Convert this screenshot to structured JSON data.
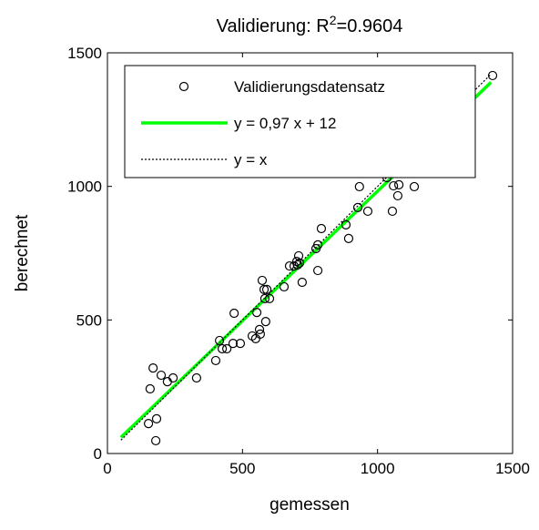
{
  "chart_data": {
    "type": "scatter",
    "title_parts": [
      "Validierung: R",
      "2",
      "=0.9604"
    ],
    "xlabel": "gemessen",
    "ylabel": "berechnet",
    "xlim": [
      0,
      1500
    ],
    "ylim": [
      0,
      1500
    ],
    "xticks": [
      0,
      500,
      1000,
      1500
    ],
    "yticks": [
      0,
      500,
      1000,
      1500
    ],
    "legend": "top-left",
    "series": [
      {
        "name": "Validierungsdatensatz",
        "color": "#000000",
        "marker": "circle",
        "x": [
          152,
          182,
          158,
          169,
          199,
          179,
          222,
          243,
          330,
          401,
          415,
          425,
          442,
          465,
          469,
          492,
          536,
          549,
          553,
          563,
          566,
          573,
          580,
          590,
          583,
          586,
          600,
          654,
          674,
          691,
          704,
          708,
          701,
          711,
          721,
          772,
          779,
          779,
          792,
          883,
          893,
          927,
          933,
          964,
          1059,
          1075,
          1079,
          1055,
          1136,
          1035,
          1426
        ],
        "values": [
          112,
          130,
          242,
          320,
          293,
          48,
          269,
          283,
          283,
          348,
          423,
          392,
          392,
          412,
          525,
          412,
          440,
          430,
          528,
          464,
          447,
          648,
          614,
          614,
          580,
          494,
          580,
          624,
          702,
          702,
          706,
          740,
          719,
          713,
          641,
          767,
          781,
          685,
          842,
          856,
          805,
          921,
          999,
          907,
          1002,
          965,
          1006,
          907,
          999,
          1033,
          1415
        ]
      },
      {
        "name": "y = 0,97 x + 12",
        "color": "#00ff00",
        "style": "solid",
        "x": [
          50,
          1420
        ],
        "values": [
          60.5,
          1389.4
        ]
      },
      {
        "name": "y = x",
        "color": "#000000",
        "style": "dotted",
        "x": [
          50,
          1420
        ],
        "values": [
          50,
          1420
        ]
      }
    ]
  }
}
